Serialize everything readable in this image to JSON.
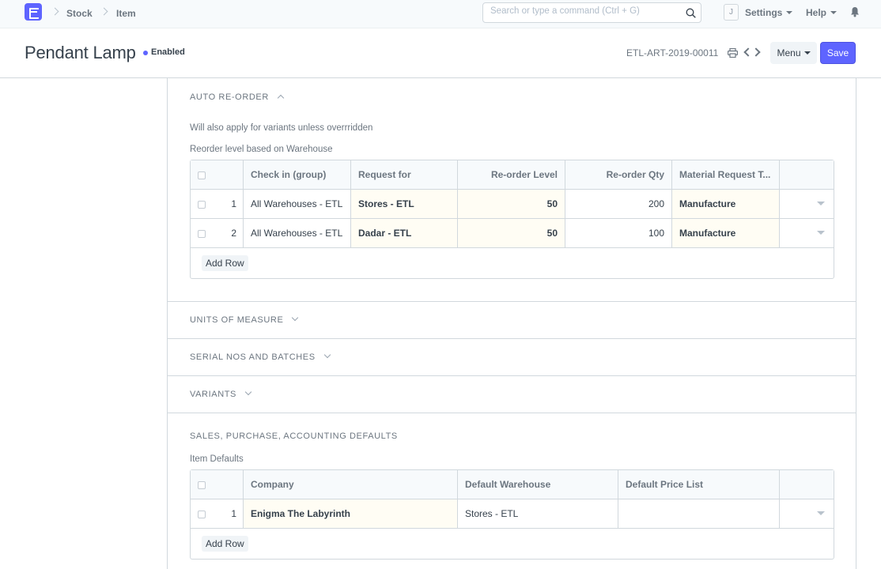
{
  "navbar": {
    "breadcrumbs": [
      "Stock",
      "Item"
    ],
    "search_placeholder": "Search or type a command (Ctrl + G)",
    "avatar_initial": "J",
    "settings_label": "Settings",
    "help_label": "Help"
  },
  "page": {
    "title": "Pendant Lamp",
    "status": "Enabled",
    "doc_name": "ETL-ART-2019-00011",
    "menu_label": "Menu",
    "save_label": "Save"
  },
  "reorder": {
    "title": "AUTO RE-ORDER",
    "note": "Will also apply for variants unless overrridden",
    "grid_label": "Reorder level based on Warehouse",
    "columns": [
      "Check in (group)",
      "Request for",
      "Re-order Level",
      "Re-order Qty",
      "Material Request T..."
    ],
    "rows": [
      {
        "idx": "1",
        "check_in": "All Warehouses - ETL",
        "request_for": "Stores - ETL",
        "level": "50",
        "qty": "200",
        "type": "Manufacture"
      },
      {
        "idx": "2",
        "check_in": "All Warehouses - ETL",
        "request_for": "Dadar - ETL",
        "level": "50",
        "qty": "100",
        "type": "Manufacture"
      }
    ],
    "add_row_label": "Add Row"
  },
  "sections": {
    "uom": "UNITS OF MEASURE",
    "serial": "SERIAL NOS AND BATCHES",
    "variants": "VARIANTS",
    "defaults": "SALES, PURCHASE, ACCOUNTING DEFAULTS"
  },
  "defaults": {
    "grid_label": "Item Defaults",
    "columns": [
      "Company",
      "Default Warehouse",
      "Default Price List"
    ],
    "rows": [
      {
        "idx": "1",
        "company": "Enigma The Labyrinth",
        "warehouse": "Stores - ETL",
        "price_list": ""
      }
    ],
    "add_row_label": "Add Row"
  },
  "colors": {
    "primary": "#5e64ff",
    "required_cell_bg": "#fffdf4",
    "border": "#d1d8dd"
  }
}
